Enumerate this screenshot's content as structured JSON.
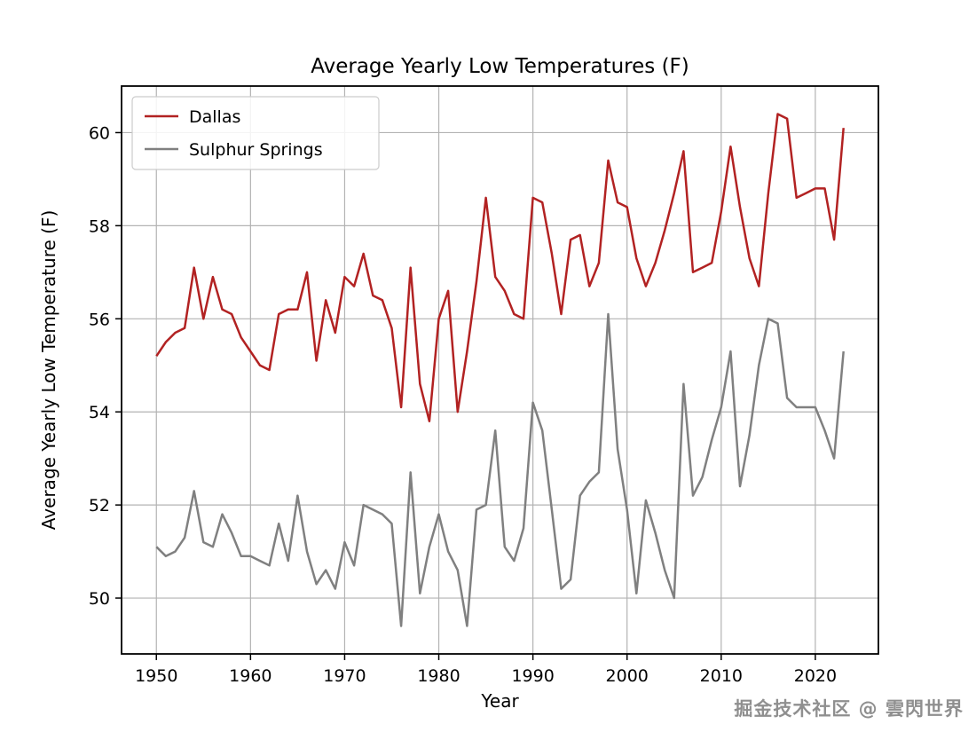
{
  "figure": {
    "title": "Average Yearly Low Temperatures (F)",
    "xlabel": "Year",
    "ylabel": "Average Yearly Low Temperature (F)"
  },
  "watermark": {
    "text": "掘金技术社区 @ 雲閃世界"
  },
  "chart_data": {
    "type": "line",
    "title": "Average Yearly Low Temperatures (F)",
    "xlabel": "Year",
    "ylabel": "Average Yearly Low Temperature (F)",
    "grid": true,
    "legend_position": "upper left",
    "x_start": 1950,
    "x_end": 2023,
    "x_step": 1,
    "xticks": [
      1950,
      1960,
      1970,
      1980,
      1990,
      2000,
      2010,
      2020
    ],
    "yticks": [
      50,
      52,
      54,
      56,
      58,
      60
    ],
    "xlim": [
      1946.3,
      2026.7
    ],
    "ylim": [
      48.8,
      61.0
    ],
    "colors": {
      "grid": "#b3b3b3",
      "axis": "#000000",
      "background": "#ffffff",
      "legend_border": "#cccccc"
    },
    "series": [
      {
        "name": "Dallas",
        "color": "#b22222",
        "values": [
          55.2,
          55.5,
          55.7,
          55.8,
          57.1,
          56.0,
          56.9,
          56.2,
          56.1,
          55.6,
          55.3,
          55.0,
          54.9,
          56.1,
          56.2,
          56.2,
          57.0,
          55.1,
          56.4,
          55.7,
          56.9,
          56.7,
          57.4,
          56.5,
          56.4,
          55.8,
          54.1,
          57.1,
          54.6,
          53.8,
          56.0,
          56.6,
          54.0,
          55.3,
          56.8,
          58.6,
          56.9,
          56.6,
          56.1,
          56.0,
          58.6,
          58.5,
          57.4,
          56.1,
          57.7,
          57.8,
          56.7,
          57.2,
          59.4,
          58.5,
          58.4,
          57.3,
          56.7,
          57.2,
          57.9,
          58.7,
          59.6,
          57.0,
          57.1,
          57.2,
          58.3,
          59.7,
          58.4,
          57.3,
          56.7,
          58.7,
          60.4,
          60.3,
          58.6,
          58.7,
          58.8,
          58.8,
          57.7,
          60.1
        ]
      },
      {
        "name": "Sulphur Springs",
        "color": "#808080",
        "values": [
          51.1,
          50.9,
          51.0,
          51.3,
          52.3,
          51.2,
          51.1,
          51.8,
          51.4,
          50.9,
          50.9,
          50.8,
          50.7,
          51.6,
          50.8,
          52.2,
          51.0,
          50.3,
          50.6,
          50.2,
          51.2,
          50.7,
          52.0,
          51.9,
          51.8,
          51.6,
          49.4,
          52.7,
          50.1,
          51.1,
          51.8,
          51.0,
          50.6,
          49.4,
          51.9,
          52.0,
          53.6,
          51.1,
          50.8,
          51.5,
          54.2,
          53.6,
          51.9,
          50.2,
          50.4,
          52.2,
          52.5,
          52.7,
          56.1,
          53.2,
          51.9,
          50.1,
          52.1,
          51.4,
          50.6,
          50.0,
          54.6,
          52.2,
          52.6,
          53.4,
          54.1,
          55.3,
          52.4,
          53.5,
          55.0,
          56.0,
          55.9,
          54.3,
          54.1,
          54.1,
          54.1,
          53.6,
          53.0,
          55.3
        ]
      }
    ]
  }
}
